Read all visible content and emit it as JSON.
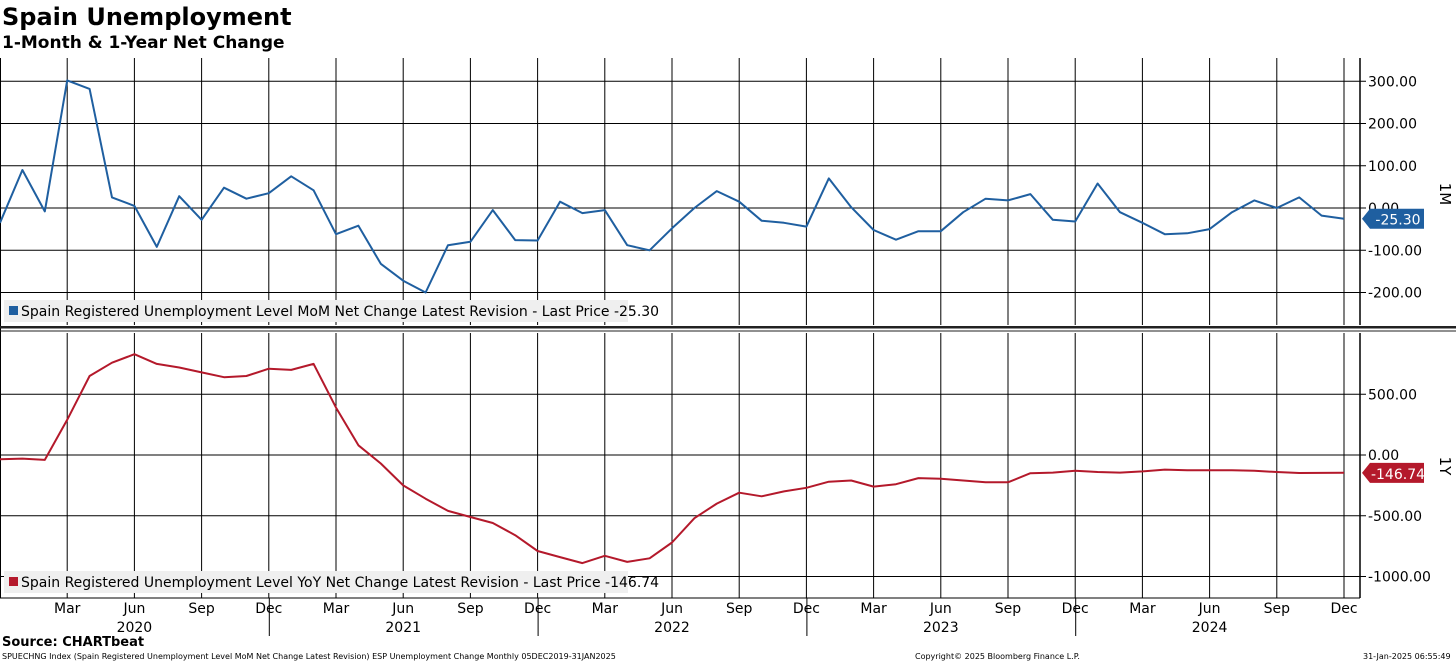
{
  "title": "Spain Unemployment",
  "subtitle": "1-Month & 1-Year Net Change",
  "source": "Source: CHARTbeat",
  "footer": {
    "left": "SPUECHNG Index (Spain Registered Unemployment Level MoM Net Change Latest Revision) ESP Unemployment Change  Monthly 05DEC2019-31JAN2025",
    "center": "Copyright© 2025 Bloomberg Finance L.P.",
    "right": "31-Jan-2025 06:55:49"
  },
  "colors": {
    "mom": "#1f5fa0",
    "yoy": "#b4192b",
    "grid": "#000000"
  },
  "chart_data": [
    {
      "type": "line",
      "panel": "top",
      "axis_title": "1M",
      "ylim": [
        -280,
        320
      ],
      "yticks": [
        300,
        200,
        100,
        0,
        -100,
        -200
      ],
      "ytick_labels": [
        "300.00",
        "200.00",
        "100.00",
        "0.00",
        "-100.00",
        "-200.00"
      ],
      "grid": true,
      "legend": "bottom-left",
      "last_price_label": "-25.30",
      "series": [
        {
          "name": "Spain Registered Unemployment Level MoM Net Change Latest Revision - Last Price -25.30",
          "x_start": "2019-12",
          "values": [
            -35,
            90,
            -8,
            302,
            282,
            25,
            5,
            -92,
            28,
            -28,
            48,
            22,
            35,
            75,
            42,
            -62,
            -42,
            -132,
            -172,
            -200,
            -88,
            -80,
            -5,
            -76,
            -77,
            15,
            -12,
            -5,
            -88,
            -100,
            -48,
            0,
            40,
            15,
            -30,
            -35,
            -44,
            70,
            2,
            -52,
            -75,
            -55,
            -55,
            -10,
            22,
            18,
            33,
            -28,
            -32,
            58,
            -10,
            -35,
            -62,
            -60,
            -50,
            -10,
            18,
            0,
            25,
            -18,
            -25.3
          ]
        }
      ]
    },
    {
      "type": "line",
      "panel": "bottom",
      "axis_title": "1Y",
      "ylim": [
        -1100,
        1000
      ],
      "yticks": [
        500,
        0,
        -500,
        -1000
      ],
      "ytick_labels": [
        "500.00",
        "0.00",
        "-500.00",
        "-1000.00"
      ],
      "grid": true,
      "legend": "bottom-left",
      "last_price_label": "-146.74",
      "x_labels": [
        "Mar",
        "Jun",
        "Sep",
        "Dec",
        "Mar",
        "Jun",
        "Sep",
        "Dec",
        "Mar",
        "Jun",
        "Sep",
        "Dec",
        "Mar",
        "Jun",
        "Sep",
        "Dec",
        "Mar",
        "Jun",
        "Sep",
        "Dec"
      ],
      "year_labels": [
        "2020",
        "2021",
        "2022",
        "2023",
        "2024"
      ],
      "series": [
        {
          "name": "Spain Registered Unemployment Level YoY Net Change Latest Revision - Last Price -146.74",
          "x_start": "2019-12",
          "values": [
            -35,
            -30,
            -40,
            290,
            650,
            760,
            830,
            750,
            720,
            680,
            640,
            650,
            710,
            700,
            750,
            390,
            80,
            -70,
            -250,
            -360,
            -460,
            -510,
            -560,
            -660,
            -790,
            -840,
            -890,
            -830,
            -880,
            -850,
            -720,
            -520,
            -400,
            -310,
            -340,
            -300,
            -270,
            -220,
            -210,
            -260,
            -240,
            -190,
            -195,
            -210,
            -225,
            -225,
            -150,
            -145,
            -130,
            -140,
            -145,
            -135,
            -120,
            -125,
            -125,
            -125,
            -130,
            -140,
            -148,
            -147,
            -146.74
          ]
        }
      ]
    }
  ]
}
